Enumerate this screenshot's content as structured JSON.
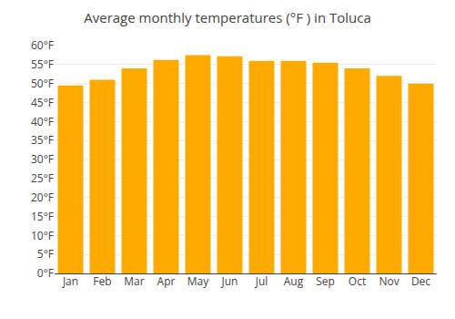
{
  "chart_data": {
    "type": "bar",
    "title": "Average monthly temperatures (°F ) in Toluca",
    "categories": [
      "Jan",
      "Feb",
      "Mar",
      "Apr",
      "May",
      "Jun",
      "Jul",
      "Aug",
      "Sep",
      "Oct",
      "Nov",
      "Dec"
    ],
    "values": [
      49.5,
      51.0,
      54.0,
      56.2,
      57.5,
      57.2,
      56.0,
      56.0,
      55.5,
      54.0,
      52.0,
      50.0
    ],
    "color": "#FFAA00",
    "ylim": [
      0,
      60
    ],
    "yticks": [
      {
        "value": 0,
        "label": "0°F"
      },
      {
        "value": 5,
        "label": "5°F"
      },
      {
        "value": 10,
        "label": "10°F"
      },
      {
        "value": 15,
        "label": "15°F"
      },
      {
        "value": 20,
        "label": "20°F"
      },
      {
        "value": 25,
        "label": "25°F"
      },
      {
        "value": 30,
        "label": "30°F"
      },
      {
        "value": 35,
        "label": "35°F"
      },
      {
        "value": 40,
        "label": "40°F"
      },
      {
        "value": 45,
        "label": "45°F"
      },
      {
        "value": 50,
        "label": "50°F"
      },
      {
        "value": 55,
        "label": "55°F"
      },
      {
        "value": 60,
        "label": "60°F"
      }
    ],
    "grid": true
  }
}
